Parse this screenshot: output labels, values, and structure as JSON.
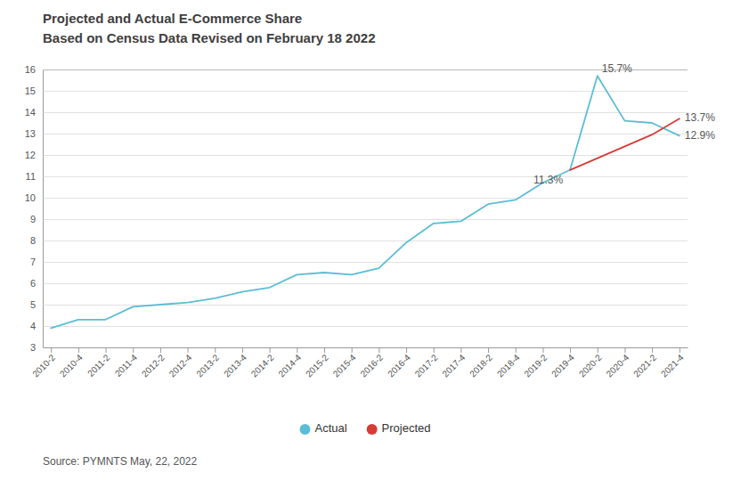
{
  "chart_data": {
    "type": "line",
    "title": "Projected and Actual E-Commerce Share",
    "subtitle": "Based on Census Data Revised on February 18 2022",
    "source": "Source: PYMNTS May, 22, 2022",
    "categories": [
      "2010-2",
      "2010-4",
      "2011-2",
      "2011-4",
      "2012-2",
      "2012-4",
      "2013-2",
      "2013-4",
      "2014-2",
      "2014-4",
      "2015-2",
      "2015-4",
      "2016-2",
      "2016-4",
      "2017-2",
      "2017-4",
      "2018-2",
      "2018-4",
      "2019-2",
      "2019-4",
      "2020-2",
      "2020-4",
      "2021-2",
      "2021-4"
    ],
    "series": [
      {
        "name": "Actual",
        "color": "#5bbdd6",
        "values": [
          3.9,
          4.3,
          4.3,
          4.9,
          5.0,
          5.1,
          5.3,
          5.6,
          5.8,
          6.4,
          6.5,
          6.4,
          6.7,
          7.9,
          8.8,
          8.9,
          9.7,
          9.9,
          10.7,
          11.3,
          15.7,
          13.6,
          13.5,
          12.9
        ]
      },
      {
        "name": "Projected",
        "color": "#d63b35",
        "values": [
          null,
          null,
          null,
          null,
          null,
          null,
          null,
          null,
          null,
          null,
          null,
          null,
          null,
          null,
          null,
          null,
          null,
          null,
          null,
          11.3,
          11.85,
          12.4,
          12.95,
          13.7
        ]
      }
    ],
    "ylim": [
      3,
      16
    ],
    "yticks": [
      3,
      4,
      5,
      6,
      7,
      8,
      9,
      10,
      11,
      12,
      13,
      14,
      15,
      16
    ],
    "grid": true,
    "legend": "bottom",
    "annotations": [
      {
        "text": "11.3%",
        "x": "2019-4",
        "y": 11.3
      },
      {
        "text": "15.7%",
        "x": "2020-2",
        "y": 15.7
      },
      {
        "text": "12.9%",
        "x": "2021-4",
        "y": 12.9
      },
      {
        "text": "13.7%",
        "x": "2021-4",
        "y": 13.7
      }
    ]
  }
}
